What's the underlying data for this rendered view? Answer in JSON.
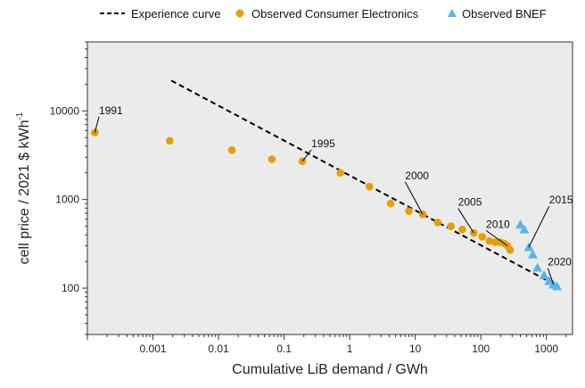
{
  "chart_data": {
    "type": "scatter",
    "title": "",
    "xlabel": "Cumulative LiB demand / GWh",
    "ylabel_main": "cell price / 2021 $ kWh",
    "ylabel_sup": "-1",
    "xscale": "log",
    "yscale": "log",
    "xlim": [
      0.0001,
      2500
    ],
    "ylim": [
      30,
      60000
    ],
    "grid": false,
    "legend_position": "top",
    "x_tick_labels": [
      "0.001",
      "0.01",
      "0.1",
      "1",
      "10",
      "100",
      "1000"
    ],
    "x_tick_values": [
      0.001,
      0.01,
      0.1,
      1,
      10,
      100,
      1000
    ],
    "y_tick_labels": [
      "100",
      "1000",
      "10000"
    ],
    "y_tick_values": [
      100,
      1000,
      10000
    ],
    "colors": {
      "consumer": "#E69F00",
      "bnef": "#56B4E9",
      "curve": "#000000",
      "panel": "#ebebeb"
    },
    "series": [
      {
        "name": "Experience curve",
        "kind": "dashed-line",
        "points": [
          [
            0.0019,
            22000
          ],
          [
            1500,
            105
          ]
        ]
      },
      {
        "name": "Observed Consumer Electronics",
        "kind": "circle",
        "points": [
          [
            0.00013,
            5700
          ],
          [
            0.0018,
            4600
          ],
          [
            0.016,
            3600
          ],
          [
            0.065,
            2850
          ],
          [
            0.19,
            2700
          ],
          [
            0.72,
            2000
          ],
          [
            2.0,
            1400
          ],
          [
            4.2,
            900
          ],
          [
            8.0,
            740
          ],
          [
            13,
            680
          ],
          [
            22,
            550
          ],
          [
            35,
            500
          ],
          [
            52,
            460
          ],
          [
            78,
            420
          ],
          [
            105,
            380
          ],
          [
            135,
            340
          ],
          [
            165,
            330
          ],
          [
            195,
            330
          ],
          [
            225,
            320
          ],
          [
            255,
            300
          ],
          [
            280,
            270
          ]
        ]
      },
      {
        "name": "Observed BNEF",
        "kind": "triangle",
        "points": [
          [
            400,
            520
          ],
          [
            460,
            460
          ],
          [
            540,
            290
          ],
          [
            620,
            240
          ],
          [
            730,
            170
          ],
          [
            920,
            140
          ],
          [
            1100,
            120
          ],
          [
            1280,
            110
          ],
          [
            1450,
            105
          ]
        ]
      }
    ],
    "annotations": [
      {
        "text": "1991",
        "target": [
          0.00013,
          5700
        ],
        "label_at": [
          0.00015,
          9200
        ]
      },
      {
        "text": "1995",
        "target": [
          0.19,
          2700
        ],
        "label_at": [
          0.26,
          3900
        ]
      },
      {
        "text": "2000",
        "target": [
          13,
          680
        ],
        "label_at": [
          7,
          1700
        ]
      },
      {
        "text": "2005",
        "target": [
          78,
          420
        ],
        "label_at": [
          45,
          850
        ]
      },
      {
        "text": "2010",
        "target": [
          255,
          300
        ],
        "label_at": [
          120,
          480
        ]
      },
      {
        "text": "2015",
        "target": [
          540,
          290
        ],
        "label_at": [
          1100,
          900
        ]
      },
      {
        "text": "2020",
        "target": [
          1280,
          110
        ],
        "label_at": [
          1050,
          180
        ]
      }
    ]
  }
}
